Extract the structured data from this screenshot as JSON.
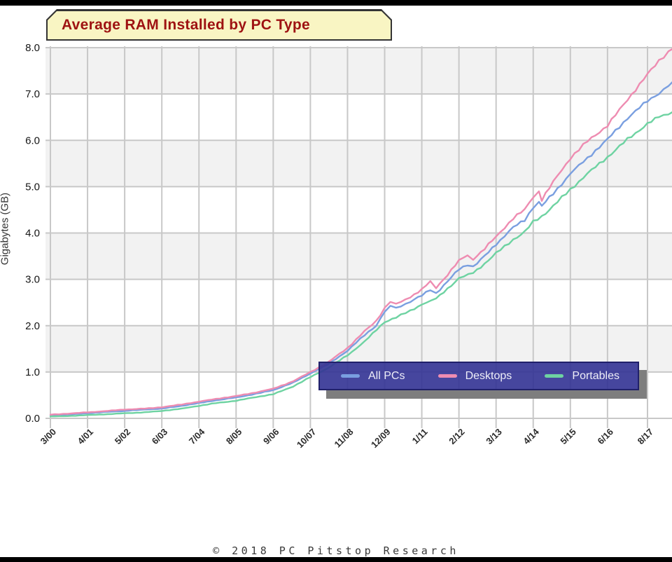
{
  "page": {
    "background": "#ffffff",
    "letterbox_color": "#000000"
  },
  "chart": {
    "footer": "© 2018 PC Pitstop Research",
    "title_box": {
      "bg": "#f9f5c3",
      "border": "#343434",
      "text_color": "#9e1212"
    },
    "legend_box": {
      "bg": "#343494",
      "border": "#20206a",
      "shadow": "#7e7e7e",
      "text_color": "#eeeef8"
    }
  },
  "chart_data": {
    "type": "line",
    "title": "Average RAM Installed by PC Type",
    "xlabel": "",
    "ylabel": "Gigabytes (GB)",
    "ylim": [
      0,
      8
    ],
    "grid": true,
    "legend_position": "bottom-right-overlay",
    "band_colors": [
      "#ffffff",
      "#f2f2f2"
    ],
    "grid_color": "#c8c8c8",
    "y_tick_labels": [
      "0.0",
      "1.0",
      "2.0",
      "3.0",
      "4.0",
      "5.0",
      "6.0",
      "7.0",
      "8.0"
    ],
    "x_unit": "months since 3/2000",
    "x_ticks": [
      {
        "label": "3/00",
        "month": 0
      },
      {
        "label": "4/01",
        "month": 13
      },
      {
        "label": "5/02",
        "month": 26
      },
      {
        "label": "6/03",
        "month": 39
      },
      {
        "label": "7/04",
        "month": 52
      },
      {
        "label": "8/05",
        "month": 65
      },
      {
        "label": "9/06",
        "month": 78
      },
      {
        "label": "10/07",
        "month": 91
      },
      {
        "label": "11/08",
        "month": 104
      },
      {
        "label": "12/09",
        "month": 117
      },
      {
        "label": "1/11",
        "month": 130
      },
      {
        "label": "2/12",
        "month": 143
      },
      {
        "label": "3/13",
        "month": 156
      },
      {
        "label": "4/14",
        "month": 169
      },
      {
        "label": "5/15",
        "month": 182
      },
      {
        "label": "6/16",
        "month": 195
      },
      {
        "label": "8/17",
        "month": 209
      }
    ],
    "series": [
      {
        "name": "All PCs",
        "color": "#7a9fe0",
        "points": [
          [
            0,
            0.06
          ],
          [
            6,
            0.08
          ],
          [
            13,
            0.11
          ],
          [
            20,
            0.14
          ],
          [
            26,
            0.16
          ],
          [
            33,
            0.19
          ],
          [
            39,
            0.21
          ],
          [
            46,
            0.27
          ],
          [
            52,
            0.33
          ],
          [
            58,
            0.39
          ],
          [
            65,
            0.45
          ],
          [
            72,
            0.53
          ],
          [
            78,
            0.61
          ],
          [
            85,
            0.77
          ],
          [
            91,
            0.97
          ],
          [
            97,
            1.16
          ],
          [
            104,
            1.46
          ],
          [
            110,
            1.8
          ],
          [
            114,
            2.0
          ],
          [
            117,
            2.3
          ],
          [
            119,
            2.42
          ],
          [
            121,
            2.38
          ],
          [
            126,
            2.52
          ],
          [
            130,
            2.65
          ],
          [
            133,
            2.78
          ],
          [
            135,
            2.7
          ],
          [
            139,
            2.95
          ],
          [
            143,
            3.22
          ],
          [
            146,
            3.32
          ],
          [
            148,
            3.27
          ],
          [
            152,
            3.5
          ],
          [
            156,
            3.76
          ],
          [
            162,
            4.12
          ],
          [
            166,
            4.28
          ],
          [
            169,
            4.56
          ],
          [
            171,
            4.65
          ],
          [
            172,
            4.58
          ],
          [
            176,
            4.85
          ],
          [
            182,
            5.28
          ],
          [
            188,
            5.62
          ],
          [
            195,
            6.02
          ],
          [
            202,
            6.48
          ],
          [
            209,
            6.85
          ],
          [
            213,
            7.02
          ],
          [
            218,
            7.25
          ]
        ]
      },
      {
        "name": "Desktops",
        "color": "#ee8cb1",
        "points": [
          [
            0,
            0.08
          ],
          [
            6,
            0.1
          ],
          [
            13,
            0.13
          ],
          [
            20,
            0.16
          ],
          [
            26,
            0.19
          ],
          [
            33,
            0.21
          ],
          [
            39,
            0.24
          ],
          [
            46,
            0.3
          ],
          [
            52,
            0.36
          ],
          [
            58,
            0.42
          ],
          [
            65,
            0.48
          ],
          [
            72,
            0.56
          ],
          [
            78,
            0.64
          ],
          [
            85,
            0.8
          ],
          [
            91,
            1.0
          ],
          [
            97,
            1.2
          ],
          [
            104,
            1.52
          ],
          [
            110,
            1.88
          ],
          [
            114,
            2.1
          ],
          [
            117,
            2.38
          ],
          [
            119,
            2.52
          ],
          [
            121,
            2.46
          ],
          [
            126,
            2.62
          ],
          [
            130,
            2.78
          ],
          [
            133,
            2.95
          ],
          [
            135,
            2.82
          ],
          [
            139,
            3.1
          ],
          [
            143,
            3.4
          ],
          [
            146,
            3.52
          ],
          [
            148,
            3.44
          ],
          [
            152,
            3.66
          ],
          [
            156,
            3.92
          ],
          [
            162,
            4.32
          ],
          [
            166,
            4.5
          ],
          [
            169,
            4.78
          ],
          [
            171,
            4.92
          ],
          [
            172,
            4.72
          ],
          [
            176,
            5.1
          ],
          [
            182,
            5.62
          ],
          [
            188,
            5.98
          ],
          [
            195,
            6.32
          ],
          [
            202,
            6.88
          ],
          [
            209,
            7.42
          ],
          [
            213,
            7.72
          ],
          [
            218,
            8.0
          ]
        ]
      },
      {
        "name": "Portables",
        "color": "#6ed3a2",
        "points": [
          [
            0,
            0.04
          ],
          [
            6,
            0.05
          ],
          [
            13,
            0.07
          ],
          [
            20,
            0.09
          ],
          [
            26,
            0.11
          ],
          [
            33,
            0.13
          ],
          [
            39,
            0.16
          ],
          [
            46,
            0.21
          ],
          [
            52,
            0.27
          ],
          [
            58,
            0.33
          ],
          [
            65,
            0.38
          ],
          [
            72,
            0.46
          ],
          [
            78,
            0.52
          ],
          [
            85,
            0.69
          ],
          [
            91,
            0.89
          ],
          [
            97,
            1.08
          ],
          [
            104,
            1.36
          ],
          [
            110,
            1.66
          ],
          [
            117,
            2.08
          ],
          [
            121,
            2.18
          ],
          [
            126,
            2.32
          ],
          [
            130,
            2.46
          ],
          [
            135,
            2.58
          ],
          [
            139,
            2.8
          ],
          [
            143,
            3.02
          ],
          [
            148,
            3.14
          ],
          [
            152,
            3.34
          ],
          [
            156,
            3.56
          ],
          [
            162,
            3.86
          ],
          [
            166,
            4.02
          ],
          [
            169,
            4.24
          ],
          [
            172,
            4.36
          ],
          [
            176,
            4.58
          ],
          [
            182,
            4.94
          ],
          [
            188,
            5.28
          ],
          [
            195,
            5.64
          ],
          [
            202,
            6.02
          ],
          [
            209,
            6.36
          ],
          [
            213,
            6.5
          ],
          [
            218,
            6.62
          ]
        ]
      }
    ]
  }
}
